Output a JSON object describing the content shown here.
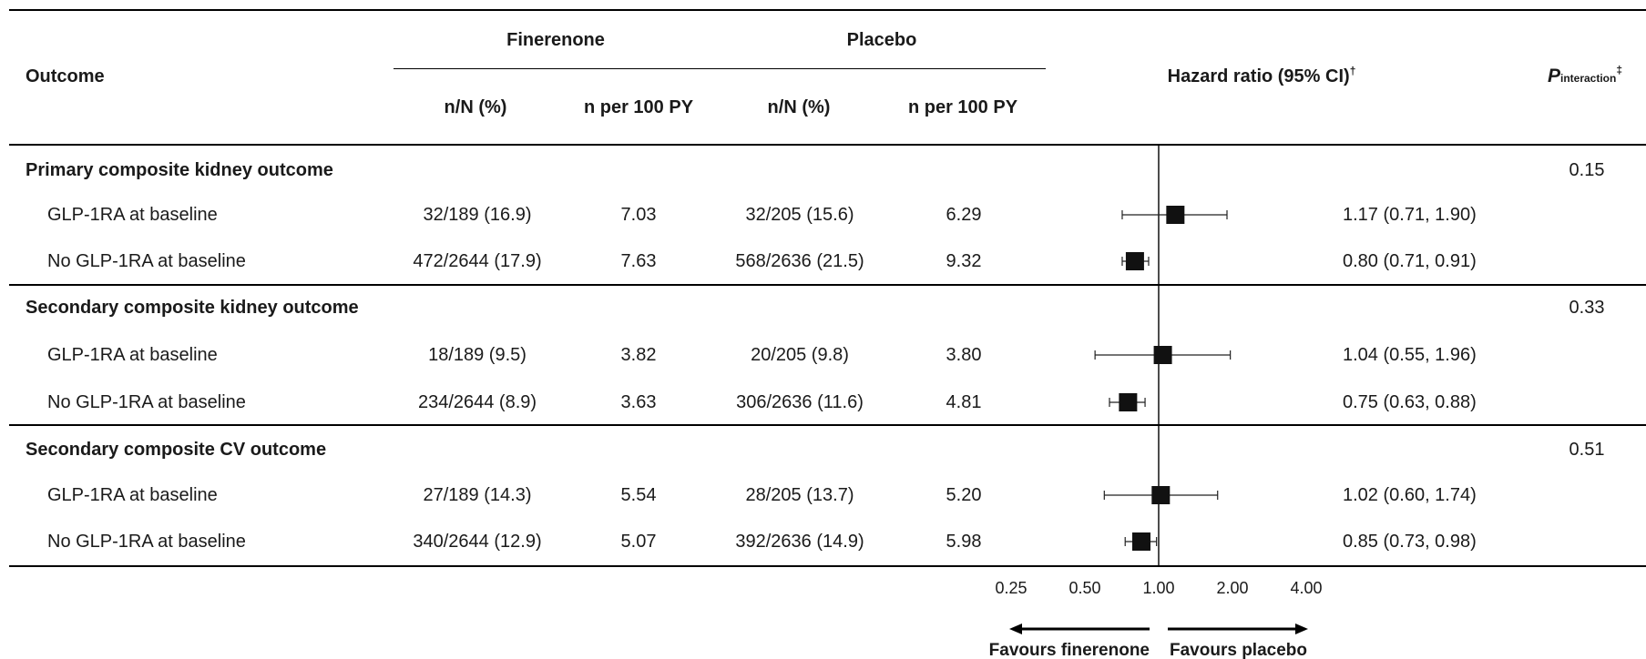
{
  "header": {
    "outcome": "Outcome",
    "group1": "Finerenone",
    "group2": "Placebo",
    "col_nN": "n/N (%)",
    "col_rate": "n per 100 PY",
    "hr_label": "Hazard ratio (95% CI)",
    "hr_mark": "†",
    "p_main": "P",
    "p_sub": "interaction",
    "p_mark": "‡"
  },
  "sections": [
    {
      "title": "Primary composite kidney outcome",
      "p_interaction": "0.15",
      "rows": [
        {
          "label": "GLP-1RA at baseline",
          "fin_nN": "32/189 (16.9)",
          "fin_rate": "7.03",
          "pla_nN": "32/205 (15.6)",
          "pla_rate": "6.29",
          "hr_text": "1.17 (0.71, 1.90)"
        },
        {
          "label": "No GLP-1RA at baseline",
          "fin_nN": "472/2644 (17.9)",
          "fin_rate": "7.63",
          "pla_nN": "568/2636 (21.5)",
          "pla_rate": "9.32",
          "hr_text": "0.80 (0.71, 0.91)"
        }
      ]
    },
    {
      "title": "Secondary composite kidney outcome",
      "p_interaction": "0.33",
      "rows": [
        {
          "label": "GLP-1RA at baseline",
          "fin_nN": "18/189 (9.5)",
          "fin_rate": "3.82",
          "pla_nN": "20/205 (9.8)",
          "pla_rate": "3.80",
          "hr_text": "1.04 (0.55, 1.96)"
        },
        {
          "label": "No GLP-1RA at baseline",
          "fin_nN": "234/2644 (8.9)",
          "fin_rate": "3.63",
          "pla_nN": "306/2636 (11.6)",
          "pla_rate": "4.81",
          "hr_text": "0.75 (0.63, 0.88)"
        }
      ]
    },
    {
      "title": "Secondary composite CV outcome",
      "p_interaction": "0.51",
      "rows": [
        {
          "label": "GLP-1RA at baseline",
          "fin_nN": "27/189 (14.3)",
          "fin_rate": "5.54",
          "pla_nN": "28/205 (13.7)",
          "pla_rate": "5.20",
          "hr_text": "1.02 (0.60, 1.74)"
        },
        {
          "label": "No GLP-1RA at baseline",
          "fin_nN": "340/2644 (12.9)",
          "fin_rate": "5.07",
          "pla_nN": "392/2636 (14.9)",
          "pla_rate": "5.98",
          "hr_text": "0.85 (0.73, 0.98)"
        }
      ]
    }
  ],
  "chart_data": {
    "type": "forest",
    "scale": "log2",
    "reference": 1.0,
    "xlim": [
      0.25,
      4.0
    ],
    "ticks": [
      "0.25",
      "0.50",
      "1.00",
      "2.00",
      "4.00"
    ],
    "tick_values": [
      0.25,
      0.5,
      1.0,
      2.0,
      4.0
    ],
    "favours_left": "Favours finerenone",
    "favours_right": "Favours placebo",
    "points": [
      {
        "outcome": "Primary composite kidney outcome",
        "subgroup": "GLP-1RA at baseline",
        "hr": 1.17,
        "lo": 0.71,
        "hi": 1.9
      },
      {
        "outcome": "Primary composite kidney outcome",
        "subgroup": "No GLP-1RA at baseline",
        "hr": 0.8,
        "lo": 0.71,
        "hi": 0.91
      },
      {
        "outcome": "Secondary composite kidney outcome",
        "subgroup": "GLP-1RA at baseline",
        "hr": 1.04,
        "lo": 0.55,
        "hi": 1.96
      },
      {
        "outcome": "Secondary composite kidney outcome",
        "subgroup": "No GLP-1RA at baseline",
        "hr": 0.75,
        "lo": 0.63,
        "hi": 0.88
      },
      {
        "outcome": "Secondary composite CV outcome",
        "subgroup": "GLP-1RA at baseline",
        "hr": 1.02,
        "lo": 0.6,
        "hi": 1.74
      },
      {
        "outcome": "Secondary composite CV outcome",
        "subgroup": "No GLP-1RA at baseline",
        "hr": 0.85,
        "lo": 0.73,
        "hi": 0.98
      }
    ]
  }
}
